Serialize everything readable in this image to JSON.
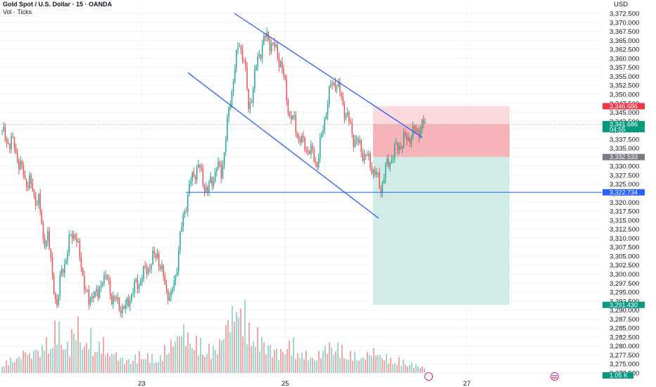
{
  "header": {
    "title": "Gold Spot / U.S. Dollar · 15 · OANDA",
    "subtitle": "Vol · Ticks",
    "currency": "USD"
  },
  "chart_data": {
    "type": "candlestick",
    "instrument": "Gold Spot / U.S. Dollar",
    "interval": "15",
    "source": "OANDA",
    "y_ticks": [
      "3,372.500",
      "3,370.000",
      "3,367.500",
      "3,365.000",
      "3,362.500",
      "3,360.000",
      "3,357.500",
      "3,355.000",
      "3,352.500",
      "3,350.000",
      "3,347.500",
      "3,345.000",
      "3,342.500",
      "3,340.000",
      "3,337.500",
      "3,335.000",
      "3,332.500",
      "3,330.000",
      "3,327.500",
      "3,325.000",
      "3,322.500",
      "3,320.000",
      "3,317.500",
      "3,315.000",
      "3,312.500",
      "3,310.000",
      "3,307.500",
      "3,305.000",
      "3,302.500",
      "3,300.000",
      "3,297.500",
      "3,295.000",
      "3,292.500",
      "3,290.000",
      "3,287.500",
      "3,285.000",
      "3,282.500",
      "3,280.000",
      "3,277.500",
      "3,275.000",
      "3,272.500"
    ],
    "ylim": [
      3272.0,
      3374.0
    ],
    "x_ticks": [
      "23",
      "25",
      "27"
    ],
    "price_path": [
      3340,
      3336,
      3338,
      3333,
      3331,
      3325,
      3327,
      3320,
      3322,
      3308,
      3312,
      3298,
      3292,
      3300,
      3305,
      3310,
      3312,
      3304,
      3298,
      3291,
      3296,
      3293,
      3300,
      3298,
      3294,
      3292,
      3291,
      3290,
      3294,
      3296,
      3298,
      3300,
      3302,
      3304,
      3306,
      3300,
      3296,
      3293,
      3300,
      3310,
      3318,
      3324,
      3328,
      3330,
      3326,
      3323,
      3326,
      3330,
      3328,
      3338,
      3348,
      3358,
      3364,
      3360,
      3346,
      3352,
      3360,
      3364,
      3366,
      3364,
      3362,
      3359,
      3352,
      3344,
      3342,
      3338,
      3336,
      3335,
      3333,
      3331,
      3338,
      3346,
      3352,
      3354,
      3350,
      3346,
      3342,
      3338,
      3336,
      3334,
      3332,
      3330,
      3327,
      3324,
      3329,
      3332,
      3334,
      3336,
      3337,
      3338,
      3339,
      3340,
      3341,
      3341.7
    ],
    "volume_series": [
      18,
      22,
      25,
      28,
      34,
      40,
      30,
      44,
      38,
      60,
      52,
      72,
      80,
      62,
      48,
      70,
      90,
      58,
      50,
      62,
      42,
      55,
      48,
      36,
      40,
      30,
      26,
      22,
      24,
      28,
      32,
      36,
      30,
      26,
      24,
      30,
      40,
      55,
      62,
      78,
      70,
      66,
      60,
      52,
      48,
      44,
      40,
      46,
      58,
      80,
      96,
      118,
      122,
      98,
      84,
      70,
      64,
      58,
      50,
      46,
      40,
      36,
      44,
      52,
      48,
      40,
      36,
      30,
      28,
      26,
      34,
      42,
      50,
      48,
      44,
      40,
      36,
      34,
      30,
      28,
      32,
      36,
      38,
      34,
      30,
      26,
      24,
      22,
      20,
      18,
      16,
      14,
      12,
      10
    ],
    "volume_last": "1.05 K",
    "annotations": {
      "channel_upper_line": [
        [
          3372.5,
          "start"
        ],
        [
          3338.0,
          "end"
        ]
      ],
      "channel_lower_line": [
        [
          3356.0,
          "start"
        ],
        [
          3315.5,
          "end"
        ]
      ],
      "support_level": 3322.734
    },
    "position": {
      "direction": "short",
      "entry": 3341.686,
      "stop": 3346.686,
      "target": 3291.43,
      "midline": 3332.533
    },
    "price_tags": [
      {
        "label": "3,346.686",
        "price": 3346.686,
        "color": "#f23645"
      },
      {
        "label": "3,341.686",
        "sublabel": "04:55",
        "price": 3341.686,
        "color": "#089981"
      },
      {
        "label": "3,332.533",
        "price": 3332.533,
        "color": "#787b86"
      },
      {
        "label": "3,322.734",
        "price": 3322.734,
        "color": "#2962ff"
      },
      {
        "label": "3,291.430",
        "price": 3291.43,
        "color": "#089981"
      }
    ],
    "colors": {
      "up": "#26a69a",
      "down": "#ef5350",
      "line": "#2962ff",
      "profit_zone": "#d1ece6",
      "loss_zone_strong": "#f7b4b8",
      "loss_zone_light": "#fbd9dc",
      "grid": "#f0f3fa"
    }
  }
}
